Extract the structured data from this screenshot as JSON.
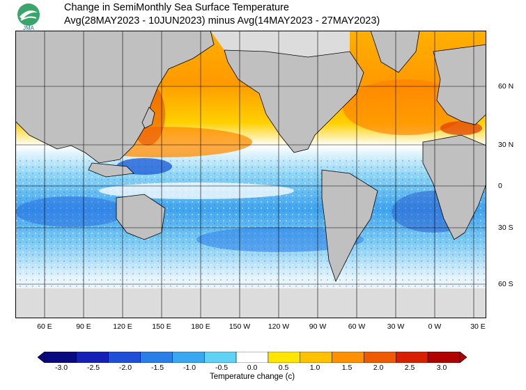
{
  "title": {
    "line1": "Change in SemiMonthly Sea Surface Temperature",
    "line2": "Avg(28MAY2023 - 10JUN2023) minus Avg(14MAY2023 - 27MAY2023)"
  },
  "logo_text": "JMA",
  "map": {
    "lon_ticks": [
      "60 E",
      "90 E",
      "120 E",
      "150 E",
      "180 E",
      "150 W",
      "120 W",
      "90 W",
      "60 W",
      "30 W",
      "0 W",
      "30 E"
    ],
    "lat_ticks": [
      "60 N",
      "30 N",
      "0",
      "30 S",
      "60 S"
    ]
  },
  "colorbar": {
    "ticks": [
      "-3.0",
      "-2.5",
      "-2.0",
      "-1.5",
      "-1.0",
      "-0.5",
      "0.0",
      "0.5",
      "1.0",
      "1.5",
      "2.0",
      "2.5",
      "3.0"
    ],
    "label": "Temperature change  (c)",
    "colors": [
      "#0a0a80",
      "#1520b8",
      "#1f4fd8",
      "#2a7ee8",
      "#3aa8f0",
      "#5fd2f5",
      "#ffffff",
      "#ffe600",
      "#ffc000",
      "#ff9000",
      "#f05a00",
      "#d82000",
      "#b00000"
    ]
  },
  "colors": {
    "land": "#c0c0c0",
    "ice": "#dcdcdc"
  }
}
